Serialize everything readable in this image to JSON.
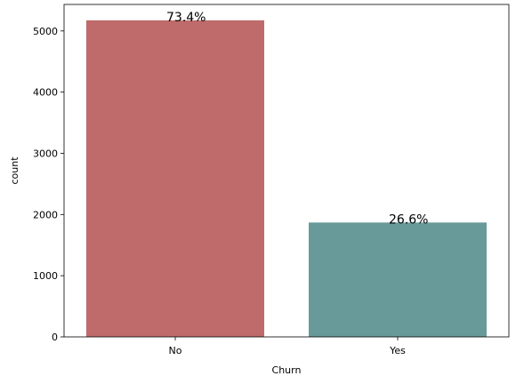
{
  "chart_data": {
    "type": "bar",
    "categories": [
      "No",
      "Yes"
    ],
    "values": [
      5174,
      1869
    ],
    "colors": [
      "#bf6b6b",
      "#689a9a"
    ],
    "annotations": [
      "73.4%",
      "26.6%"
    ],
    "xlabel": "Churn",
    "ylabel": "count",
    "ylim": [
      0,
      5433
    ],
    "yticks": [
      0,
      1000,
      2000,
      3000,
      4000,
      5000
    ],
    "grid": false
  }
}
